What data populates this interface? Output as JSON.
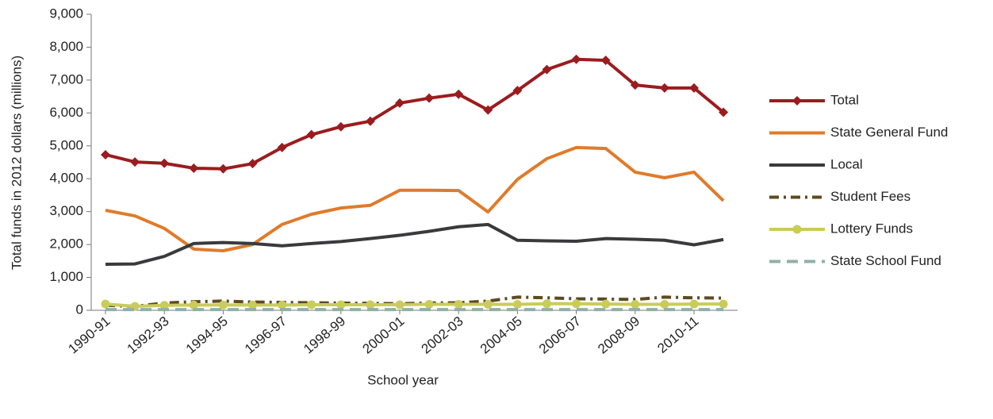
{
  "chart_data": {
    "type": "line",
    "x_label": "School year",
    "y_label": "Total funds in 2012 dollars (millions)",
    "categories": [
      "1990-91",
      null,
      "1992-93",
      null,
      "1994-95",
      null,
      "1996-97",
      null,
      "1998-99",
      null,
      "2000-01",
      null,
      "2002-03",
      null,
      "2004-05",
      null,
      "2006-07",
      null,
      "2008-09",
      null,
      "2010-11",
      null
    ],
    "ylim": [
      0,
      9000
    ],
    "yticks": [
      0,
      {
        "value": 1000,
        "label": "1,000"
      },
      {
        "value": 2000,
        "label": "2,000"
      },
      {
        "value": 3000,
        "label": "3,000"
      },
      {
        "value": 4000,
        "label": "4,000"
      },
      {
        "value": 5000,
        "label": "5,000"
      },
      {
        "value": 6000,
        "label": "6,000"
      },
      {
        "value": 7000,
        "label": "7,000"
      },
      {
        "value": 8000,
        "label": "8,000"
      },
      {
        "value": 9000,
        "label": "9,000"
      }
    ],
    "legend": "right",
    "series": [
      {
        "name": "Total",
        "color": "#9b1c1f",
        "marker": "diamond",
        "dash": "solid",
        "values": [
          4730,
          4510,
          4470,
          4320,
          4300,
          4460,
          4950,
          5340,
          5580,
          5750,
          6300,
          6450,
          6570,
          6090,
          6680,
          7320,
          7630,
          7600,
          6850,
          6760,
          6760,
          6020
        ]
      },
      {
        "name": "State General Fund",
        "color": "#e07b2a",
        "marker": "none",
        "dash": "solid",
        "values": [
          3040,
          2870,
          2490,
          1860,
          1810,
          2000,
          2610,
          2920,
          3110,
          3190,
          3650,
          3650,
          3640,
          2990,
          3980,
          4610,
          4950,
          4920,
          4200,
          4030,
          4200,
          3330
        ]
      },
      {
        "name": "Local",
        "color": "#3a3a3c",
        "marker": "none",
        "dash": "solid",
        "values": [
          1400,
          1410,
          1640,
          2030,
          2060,
          2030,
          1960,
          2030,
          2090,
          2180,
          2280,
          2400,
          2540,
          2610,
          2130,
          2110,
          2100,
          2180,
          2160,
          2130,
          1990,
          2150
        ]
      },
      {
        "name": "Student Fees",
        "color": "#5e4a1e",
        "marker": "none",
        "dash": "dashdot",
        "values": [
          150,
          120,
          220,
          260,
          280,
          250,
          240,
          230,
          220,
          210,
          200,
          220,
          230,
          280,
          400,
          380,
          350,
          340,
          330,
          400,
          380,
          370
        ]
      },
      {
        "name": "Lottery Funds",
        "color": "#c9cc5a",
        "marker": "circle",
        "dash": "solid",
        "values": [
          190,
          120,
          150,
          160,
          160,
          160,
          160,
          170,
          170,
          170,
          170,
          180,
          180,
          180,
          180,
          200,
          200,
          190,
          180,
          180,
          190,
          190
        ]
      },
      {
        "name": "State School Fund",
        "color": "#8fb0a8",
        "marker": "none",
        "dash": "dashed",
        "values": [
          20,
          20,
          20,
          20,
          20,
          20,
          20,
          20,
          20,
          20,
          20,
          20,
          20,
          20,
          20,
          20,
          20,
          20,
          20,
          20,
          20,
          20
        ]
      }
    ]
  }
}
